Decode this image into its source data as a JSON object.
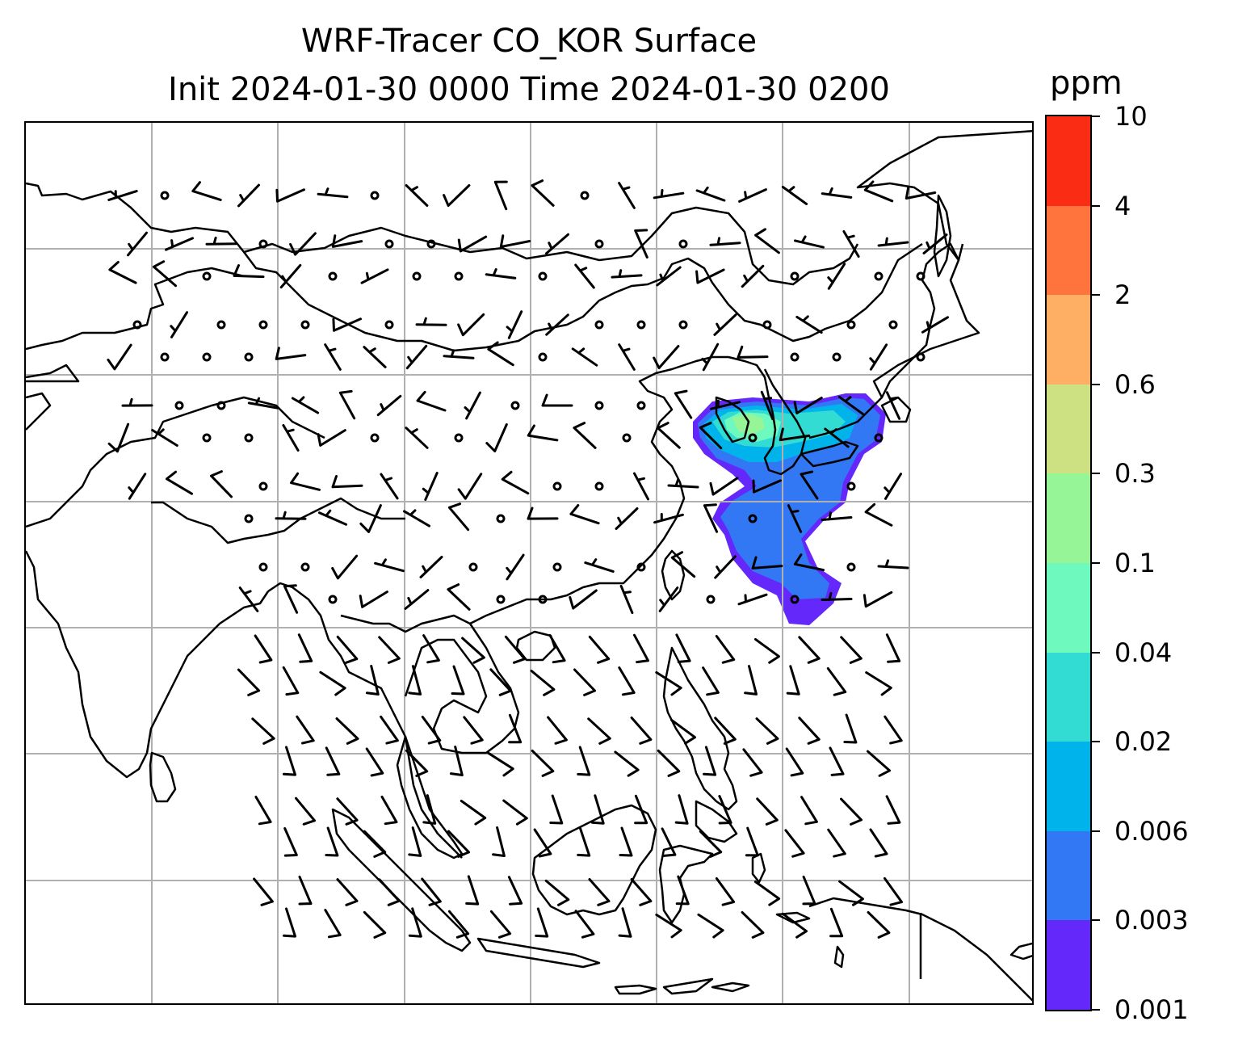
{
  "title": {
    "line1": "WRF-Tracer CO_KOR Surface",
    "line2": "Init 2024-01-30 0000 Time 2024-01-30 0200"
  },
  "colorbar": {
    "unit": "ppm",
    "tick_labels": [
      "0.001",
      "0.003",
      "0.006",
      "0.02",
      "0.04",
      "0.1",
      "0.3",
      "0.6",
      "2",
      "4",
      "10"
    ],
    "colors": [
      "#6428fa",
      "#3278f5",
      "#00b4eb",
      "#32dcd2",
      "#6efabe",
      "#96f596",
      "#cde082",
      "#ffaf64",
      "#ff733c",
      "#fa2d14"
    ]
  },
  "map": {
    "projection": "lat-lon",
    "region": "East Asia, Southeast Asia and Indian subcontinent",
    "gridlines": true,
    "coastlines_color": "#000000",
    "gridline_color": "#b0b0b0",
    "wind_barbs": true,
    "plume": {
      "tracer": "CO_KOR",
      "source_region": "Korean Peninsula",
      "max_level_ppm": 0.3,
      "extent_description": "Korea, Yellow Sea and East China Sea toward Taiwan and Japan"
    }
  }
}
